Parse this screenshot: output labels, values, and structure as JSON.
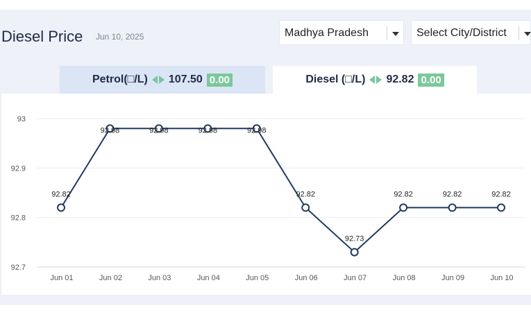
{
  "header": {
    "title": "Diesel Price",
    "date": "Jun 10, 2025"
  },
  "filters": {
    "state": "Madhya Pradesh",
    "city": "Select City/District"
  },
  "tabs": [
    {
      "fuel": "Petrol(□/L)",
      "price": "107.50",
      "change": "0.00",
      "active": false
    },
    {
      "fuel": "Diesel (□/L)",
      "price": "92.82",
      "change": "0.00",
      "active": true
    }
  ],
  "colors": {
    "line": "#1f3a60",
    "change_badge": "#7bc89a",
    "inactive_tab": "#dbe5f6"
  },
  "chart_data": {
    "type": "line",
    "categories": [
      "Jun 01",
      "Jun 02",
      "Jun 03",
      "Jun 04",
      "Jun 05",
      "Jun 06",
      "Jun 07",
      "Jun 08",
      "Jun 09",
      "Jun 10"
    ],
    "values": [
      92.82,
      92.98,
      92.98,
      92.98,
      92.98,
      92.82,
      92.73,
      92.82,
      92.82,
      92.82
    ],
    "labels": [
      "92.82",
      "92.98",
      "92.98",
      "92.98",
      "92.98",
      "92.82",
      "92.73",
      "92.82",
      "92.82",
      "92.82"
    ],
    "yticks": [
      "93",
      "92.9",
      "92.8",
      "92.7"
    ],
    "ylim": [
      92.7,
      93
    ],
    "grid": true,
    "title": "",
    "xlabel": "",
    "ylabel": ""
  }
}
